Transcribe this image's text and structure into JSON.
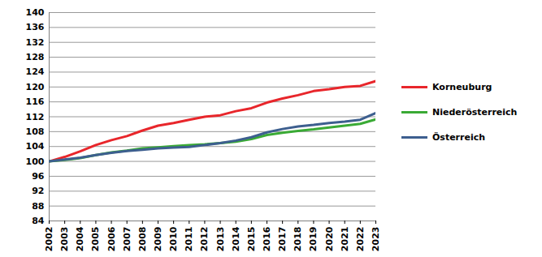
{
  "chart_data": {
    "type": "line",
    "x": [
      2002,
      2003,
      2004,
      2005,
      2006,
      2007,
      2008,
      2009,
      2010,
      2011,
      2012,
      2013,
      2014,
      2015,
      2016,
      2017,
      2018,
      2019,
      2020,
      2021,
      2022,
      2023
    ],
    "series": [
      {
        "name": "Korneuburg",
        "color": "#e8262b",
        "values": [
          100,
          101.2,
          102.7,
          104.4,
          105.7,
          106.8,
          108.3,
          109.6,
          110.3,
          111.2,
          112.0,
          112.4,
          113.5,
          114.3,
          115.8,
          116.9,
          117.8,
          118.9,
          119.4,
          120.0,
          120.3,
          121.6
        ]
      },
      {
        "name": "Niederösterreich",
        "color": "#3aaa35",
        "values": [
          100,
          100.4,
          100.9,
          101.7,
          102.4,
          102.9,
          103.5,
          103.8,
          104.1,
          104.4,
          104.6,
          104.9,
          105.3,
          106.0,
          107.1,
          107.7,
          108.2,
          108.6,
          109.1,
          109.6,
          110.1,
          111.3
        ]
      },
      {
        "name": "Österreich",
        "color": "#3d5f8f",
        "values": [
          100,
          100.5,
          101.0,
          101.7,
          102.3,
          102.8,
          103.1,
          103.5,
          103.7,
          103.9,
          104.4,
          104.9,
          105.6,
          106.5,
          107.8,
          108.7,
          109.4,
          109.8,
          110.3,
          110.7,
          111.2,
          113.0
        ]
      }
    ],
    "xlim": [
      2002,
      2023
    ],
    "xticks": [
      2002,
      2003,
      2004,
      2005,
      2006,
      2007,
      2008,
      2009,
      2010,
      2011,
      2012,
      2013,
      2014,
      2015,
      2016,
      2017,
      2018,
      2019,
      2020,
      2021,
      2022,
      2023
    ],
    "ylim": [
      84,
      140
    ],
    "yticks": [
      84,
      88,
      92,
      96,
      100,
      104,
      108,
      112,
      116,
      120,
      124,
      128,
      132,
      136,
      140
    ],
    "grid": true,
    "legend": "right"
  }
}
